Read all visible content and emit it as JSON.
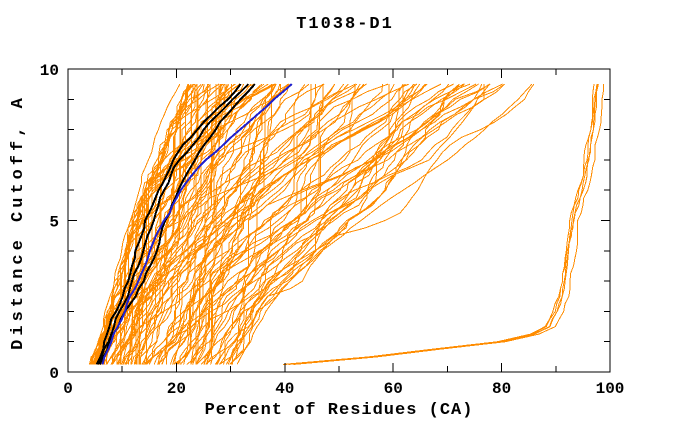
{
  "window": {
    "title": "T1038-D1"
  },
  "chart_data": {
    "type": "line",
    "title": "T1038-D1",
    "xlabel": "Percent of Residues (CA)",
    "ylabel": "Distance Cutoff, A",
    "xlim": [
      0,
      100
    ],
    "ylim": [
      0,
      10
    ],
    "x_tick_step": 10,
    "x_label_values": [
      0,
      20,
      40,
      60,
      80,
      100
    ],
    "y_tick_step": 1,
    "y_label_values": [
      0,
      5,
      10
    ],
    "grid": false,
    "legend": null,
    "background": "#ffffff",
    "frame_color": "#000000",
    "text_color": "#000000",
    "series_colors": {
      "ensemble": "#ff8c00",
      "highlight": "#000000",
      "reference": "#2222cc"
    },
    "y_samples": {
      "start": 0.25,
      "end": 9.5,
      "step": 0.25
    },
    "ensemble": {
      "label": "model ensemble curves (orange)",
      "count": 110,
      "color": "#ff8c00",
      "width": 1,
      "left_edge_yx": [
        [
          0.25,
          4.5
        ],
        [
          1,
          6.1
        ],
        [
          2,
          7.6
        ],
        [
          3,
          9.2
        ],
        [
          4,
          10.7
        ],
        [
          5,
          12.2
        ],
        [
          6,
          14.2
        ],
        [
          7,
          16.6
        ],
        [
          8,
          19.2
        ],
        [
          9,
          21.6
        ],
        [
          9.5,
          23.0
        ]
      ],
      "right_edge_yx": [
        [
          0.25,
          30
        ],
        [
          1,
          32.5
        ],
        [
          2,
          35.5
        ],
        [
          3,
          40.5
        ],
        [
          4,
          46
        ],
        [
          5,
          52
        ],
        [
          6,
          58.5
        ],
        [
          7,
          65
        ],
        [
          8,
          71
        ],
        [
          9,
          77
        ],
        [
          9.5,
          81
        ]
      ],
      "skew": 1.7,
      "jitter": 1.5,
      "seed": 20381
    },
    "stragglers": {
      "label": "ragged right-frontier curves (orange)",
      "color": "#ff8c00",
      "width": 1,
      "jitter": 0.5,
      "seed": 512,
      "paths_yx": [
        [
          [
            0.25,
            31
          ],
          [
            1,
            33.5
          ],
          [
            2,
            36.5
          ],
          [
            3,
            41
          ],
          [
            4,
            47
          ],
          [
            5,
            54
          ],
          [
            6,
            62
          ],
          [
            7,
            70
          ],
          [
            8,
            77
          ],
          [
            9,
            83
          ],
          [
            9.5,
            85.5
          ]
        ],
        [
          [
            0.25,
            29
          ],
          [
            1,
            32
          ],
          [
            2,
            35.2
          ],
          [
            2.6,
            37
          ],
          [
            2.8,
            42.5
          ],
          [
            3.5,
            45
          ],
          [
            4.5,
            49.5
          ],
          [
            4.8,
            56
          ],
          [
            5.2,
            61
          ],
          [
            6,
            64.5
          ],
          [
            7,
            68
          ],
          [
            7.6,
            71
          ],
          [
            8,
            76
          ],
          [
            8.4,
            80
          ],
          [
            9,
            84
          ],
          [
            9.5,
            86
          ]
        ],
        [
          [
            0.25,
            27
          ],
          [
            1,
            30.5
          ],
          [
            2,
            33.8
          ],
          [
            3,
            37.5
          ],
          [
            4,
            42.5
          ],
          [
            5,
            48.5
          ],
          [
            6,
            55.5
          ],
          [
            6.5,
            60
          ],
          [
            7,
            66.5
          ],
          [
            8,
            71.5
          ],
          [
            9,
            75.5
          ],
          [
            9.5,
            77.5
          ]
        ],
        [
          [
            0.25,
            4.4
          ],
          [
            1,
            5.6
          ],
          [
            2,
            7.0
          ],
          [
            3,
            8.4
          ],
          [
            4,
            9.8
          ],
          [
            5,
            11.2
          ],
          [
            6,
            12.8
          ],
          [
            7,
            14.6
          ],
          [
            8,
            16.8
          ],
          [
            9,
            19.2
          ],
          [
            9.5,
            20.4
          ]
        ]
      ]
    },
    "outliers": {
      "label": "high-accuracy outlier bundle (orange, right side)",
      "count": 5,
      "color": "#ff8c00",
      "width": 1,
      "spread": 1.4,
      "jitter": 0.5,
      "seed": 97,
      "base_yx": [
        [
          0.25,
          40.5
        ],
        [
          0.5,
          56
        ],
        [
          0.8,
          70
        ],
        [
          1.0,
          80
        ],
        [
          1.2,
          85.5
        ],
        [
          1.5,
          88.8
        ],
        [
          2,
          90.3
        ],
        [
          2.5,
          91.2
        ],
        [
          3.5,
          92.1
        ],
        [
          4.5,
          92.8
        ],
        [
          5,
          93.2
        ],
        [
          5.5,
          94.0
        ],
        [
          6,
          94.8
        ],
        [
          6.5,
          95.5
        ],
        [
          7,
          96.0
        ],
        [
          7.5,
          96.4
        ],
        [
          8,
          96.9
        ],
        [
          8.5,
          97.2
        ],
        [
          9,
          97.5
        ],
        [
          9.5,
          97.9
        ]
      ]
    },
    "highlight_series": [
      {
        "name": "highlighted-model-1",
        "color": "#000000",
        "width": 2,
        "jitter": 0.55,
        "seed": 31,
        "points_yx": [
          [
            0.25,
            5.2
          ],
          [
            1,
            6.8
          ],
          [
            2,
            8.8
          ],
          [
            3,
            11.0
          ],
          [
            4,
            12.6
          ],
          [
            5,
            14.2
          ],
          [
            6,
            16.4
          ],
          [
            6.8,
            18.8
          ],
          [
            7.5,
            21.5
          ],
          [
            8.1,
            24.5
          ],
          [
            8.7,
            27.5
          ],
          [
            9.1,
            29.8
          ],
          [
            9.5,
            31.5
          ]
        ]
      },
      {
        "name": "highlighted-model-2",
        "color": "#000000",
        "width": 2,
        "jitter": 0.55,
        "seed": 32,
        "points_yx": [
          [
            0.25,
            5.5
          ],
          [
            1,
            7.3
          ],
          [
            2,
            9.6
          ],
          [
            3,
            12.0
          ],
          [
            4,
            14.0
          ],
          [
            5,
            15.8
          ],
          [
            6,
            17.6
          ],
          [
            6.8,
            19.8
          ],
          [
            7.5,
            22.8
          ],
          [
            8.2,
            26.0
          ],
          [
            8.8,
            29.0
          ],
          [
            9.2,
            31.3
          ],
          [
            9.5,
            33.0
          ]
        ]
      },
      {
        "name": "highlighted-model-3",
        "color": "#000000",
        "width": 2,
        "jitter": 0.55,
        "seed": 33,
        "points_yx": [
          [
            0.25,
            5.8
          ],
          [
            1,
            7.8
          ],
          [
            2,
            10.5
          ],
          [
            3,
            13.8
          ],
          [
            4,
            16.2
          ],
          [
            5,
            18.2
          ],
          [
            6,
            20.3
          ],
          [
            6.8,
            22.5
          ],
          [
            7.5,
            25.0
          ],
          [
            8.2,
            27.8
          ],
          [
            8.8,
            30.5
          ],
          [
            9.2,
            32.8
          ],
          [
            9.5,
            34.6
          ]
        ]
      }
    ],
    "reference_series": {
      "name": "reference-model-blue",
      "color": "#2222cc",
      "width": 2,
      "jitter": 0.45,
      "seed": 77,
      "points_yx": [
        [
          0.25,
          6.4
        ],
        [
          1,
          8.0
        ],
        [
          2,
          10.3
        ],
        [
          3,
          12.9
        ],
        [
          4,
          15.3
        ],
        [
          5,
          17.8
        ],
        [
          6,
          21.0
        ],
        [
          6.7,
          24.0
        ],
        [
          7.3,
          27.5
        ],
        [
          7.9,
          31.0
        ],
        [
          8.4,
          34.5
        ],
        [
          8.9,
          37.5
        ],
        [
          9.2,
          39.3
        ],
        [
          9.5,
          41.3
        ]
      ]
    }
  }
}
